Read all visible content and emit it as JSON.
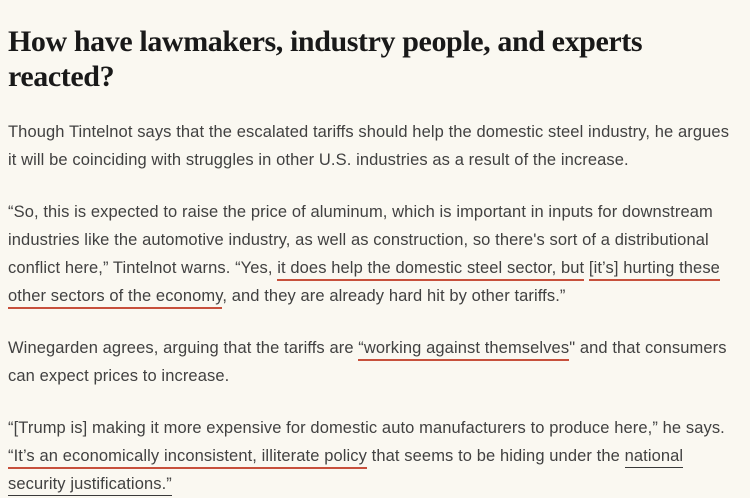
{
  "page": {
    "background_color": "#faf8f1",
    "heading_color": "#191919",
    "body_text_color": "#414141",
    "link_underline_red": "#c7503c",
    "link_underline_dark": "#3a3a3a"
  },
  "heading": {
    "text": "How have lawmakers, industry people, and experts reacted?",
    "lines": [
      "How have lawmakers, industry people, and experts",
      "reacted?"
    ]
  },
  "paragraphs": [
    {
      "runs": [
        {
          "style": "plain",
          "text": "Though Tintelnot says that the escalated tariffs should help the domestic steel industry, he argues it will be coinciding with struggles in other U.S. industries as a result of the increase."
        }
      ]
    },
    {
      "runs": [
        {
          "style": "plain",
          "text": "“So, this is expected to raise the price of aluminum, which is important in inputs for downstream industries like the automotive industry, as well as construction, so there's sort of a distributional conflict here,” Tintelnot warns. “Yes, "
        },
        {
          "style": "red",
          "text": "it does help the domestic steel sector, but"
        },
        {
          "style": "plain",
          "text": " "
        },
        {
          "style": "red",
          "text": "[it’s] hurting these other sectors of the economy"
        },
        {
          "style": "plain",
          "text": ", and they are already hard hit by other tariffs.”"
        }
      ]
    },
    {
      "runs": [
        {
          "style": "plain",
          "text": "Winegarden agrees, arguing that the tariffs are "
        },
        {
          "style": "red",
          "text": "“working against themselves"
        },
        {
          "style": "plain",
          "text": "\" and that consumers can expect prices to increase."
        }
      ]
    },
    {
      "runs": [
        {
          "style": "plain",
          "text": "“[Trump is] making it more expensive for domestic auto manufacturers to produce here,” he says. "
        },
        {
          "style": "red",
          "text": "“It’s an economically inconsistent, illiterate policy"
        },
        {
          "style": "plain",
          "text": " that seems to be hiding under the "
        },
        {
          "style": "dark",
          "text": "national security justifications.”"
        }
      ]
    }
  ]
}
